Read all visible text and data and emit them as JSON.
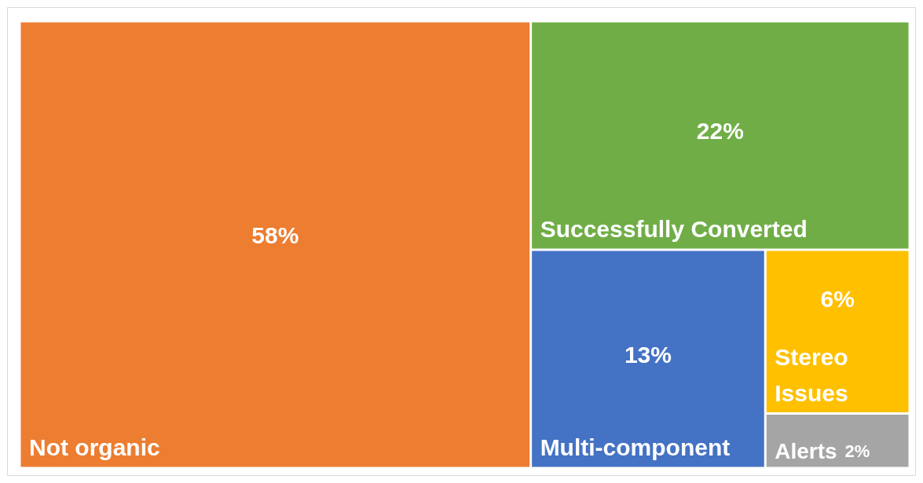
{
  "chart_data": {
    "type": "other",
    "categories": [
      "Not organic",
      "Successfully Converted",
      "Multi-component",
      "Stereo Issues",
      "Alerts"
    ],
    "values": [
      58,
      22,
      13,
      6,
      2
    ],
    "value_labels": [
      "58%",
      "22%",
      "13%",
      "6%",
      "2%"
    ],
    "colors": [
      "#ed7d31",
      "#70ad47",
      "#4472c4",
      "#ffc000",
      "#a5a5a5"
    ]
  }
}
